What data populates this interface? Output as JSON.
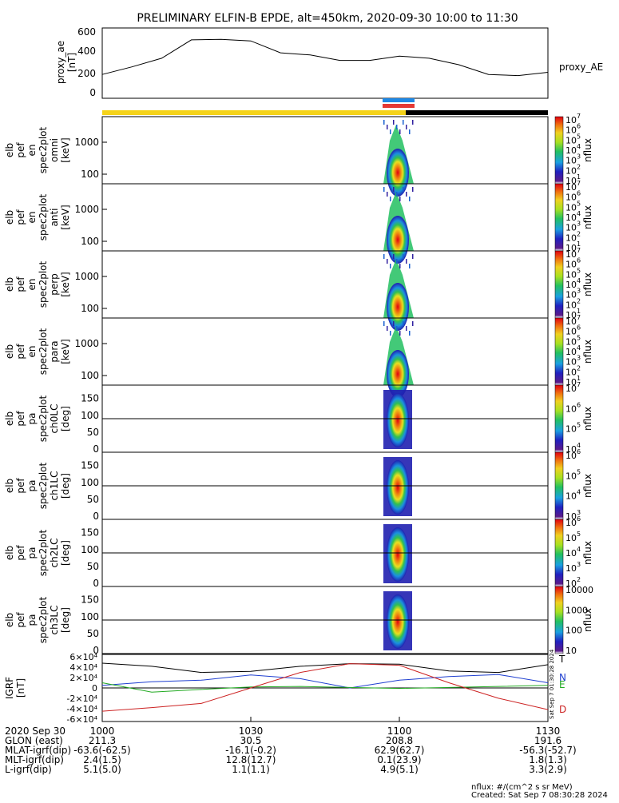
{
  "title": "PRELIMINARY ELFIN-B EPDE, alt=450km, 2020-09-30 10:00 to 11:30",
  "ae_panel": {
    "ylabel": [
      "proxy_ae",
      "[nT]"
    ],
    "legend": "proxy_AE",
    "ticks": [
      "0",
      "200",
      "400",
      "600"
    ]
  },
  "spec_panels": [
    {
      "ylabel": [
        "elb",
        "pef",
        "en",
        "spec2plot",
        "omni",
        "[keV]"
      ],
      "ticks": [
        "100",
        "1000"
      ],
      "cb_label": "nflux",
      "cb_ticks": [
        "10",
        "10",
        "10",
        "10",
        "10",
        "10",
        "10"
      ],
      "cb_exps": [
        "1",
        "2",
        "3",
        "4",
        "5",
        "6",
        "7"
      ]
    },
    {
      "ylabel": [
        "elb",
        "pef",
        "en",
        "spec2plot",
        "anti",
        "[keV]"
      ],
      "ticks": [
        "100",
        "1000"
      ],
      "cb_label": "nflux",
      "cb_ticks": [
        "10",
        "10",
        "10",
        "10",
        "10",
        "10",
        "10"
      ],
      "cb_exps": [
        "1",
        "2",
        "3",
        "4",
        "5",
        "6",
        "7"
      ]
    },
    {
      "ylabel": [
        "elb",
        "pef",
        "en",
        "spec2plot",
        "perp",
        "[keV]"
      ],
      "ticks": [
        "100",
        "1000"
      ],
      "cb_label": "nflux",
      "cb_ticks": [
        "10",
        "10",
        "10",
        "10",
        "10",
        "10",
        "10"
      ],
      "cb_exps": [
        "1",
        "2",
        "3",
        "4",
        "5",
        "6",
        "7"
      ]
    },
    {
      "ylabel": [
        "elb",
        "pef",
        "en",
        "spec2plot",
        "para",
        "[keV]"
      ],
      "ticks": [
        "100",
        "1000"
      ],
      "cb_label": "nflux",
      "cb_ticks": [
        "10",
        "10",
        "10",
        "10",
        "10",
        "10",
        "10"
      ],
      "cb_exps": [
        "1",
        "2",
        "3",
        "4",
        "5",
        "6",
        "7"
      ]
    }
  ],
  "pa_panels": [
    {
      "ylabel": [
        "elb",
        "pef",
        "pa",
        "spec2plot",
        "ch0LC",
        "[deg]"
      ],
      "ticks": [
        "0",
        "50",
        "100",
        "150"
      ],
      "cb_label": "nflux",
      "cb_ticks": [
        "10",
        "10",
        "10",
        "10"
      ],
      "cb_exps": [
        "4",
        "5",
        "6",
        "7"
      ]
    },
    {
      "ylabel": [
        "elb",
        "pef",
        "pa",
        "spec2plot",
        "ch1LC",
        "[deg]"
      ],
      "ticks": [
        "0",
        "50",
        "100",
        "150"
      ],
      "cb_label": "nflux",
      "cb_ticks": [
        "10",
        "10",
        "10",
        "10"
      ],
      "cb_exps": [
        "3",
        "4",
        "5",
        "6"
      ]
    },
    {
      "ylabel": [
        "elb",
        "pef",
        "pa",
        "spec2plot",
        "ch2LC",
        "[deg]"
      ],
      "ticks": [
        "0",
        "50",
        "100",
        "150"
      ],
      "cb_label": "nflux",
      "cb_ticks": [
        "10",
        "10",
        "10",
        "10",
        "10"
      ],
      "cb_exps": [
        "2",
        "3",
        "4",
        "5",
        "6"
      ]
    },
    {
      "ylabel": [
        "elb",
        "pef",
        "pa",
        "spec2plot",
        "ch3LC",
        "[deg]"
      ],
      "ticks": [
        "0",
        "50",
        "100",
        "150"
      ],
      "cb_label": "nflux",
      "cb_ticks": [
        "10",
        "100",
        "1000",
        "10000"
      ],
      "cb_exps": [
        "",
        "",
        "",
        ""
      ]
    }
  ],
  "igrf_panel": {
    "ylabel": [
      "IGRF",
      "[nT]"
    ],
    "ticks": [
      "-6×10⁴",
      "-4×10⁴",
      "-2×10⁴",
      "0",
      "2×10⁴",
      "4×10⁴",
      "6×10⁴"
    ],
    "legend": [
      "T",
      "N",
      "E",
      "D"
    ],
    "side_text": "Sat Sep  7 01:30:28 2024"
  },
  "footer": {
    "rows": [
      {
        "label": "2020 Sep 30",
        "values": [
          "1000",
          "1030",
          "1100",
          "1130"
        ]
      },
      {
        "label": "GLON (east)",
        "values": [
          "211.3",
          "30.5",
          "208.8",
          "191.6"
        ]
      },
      {
        "label": "MLAT-igrf(dip)",
        "values": [
          "-63.6(-62.5)",
          "-16.1(-0.2)",
          "62.9(62.7)",
          "-56.3(-52.7)"
        ]
      },
      {
        "label": "MLT-igrf(dip)",
        "values": [
          "2.4(1.5)",
          "12.8(12.7)",
          "0.1(23.9)",
          "1.8(1.3)"
        ]
      },
      {
        "label": "L-igrf(dip)",
        "values": [
          "5.1(5.0)",
          "1.1(1.1)",
          "4.9(5.1)",
          "3.3(2.9)"
        ]
      }
    ],
    "units_note": "nflux: #/(cm^2 s sr MeV)",
    "created": "Created: Sat Sep  7 08:30:28 2024"
  },
  "colors": {
    "sunlight_bar": "#f5d31a",
    "shadow_bar": "#000000",
    "science_blue": "#1e88e5",
    "science_red": "#e53935",
    "T": "#000000",
    "N": "#1f3fd0",
    "E": "#22aa22",
    "D": "#cc2222"
  },
  "chart_data": [
    {
      "type": "line",
      "name": "proxy_AE",
      "x": [
        "10:00",
        "10:06",
        "10:12",
        "10:18",
        "10:24",
        "10:30",
        "10:36",
        "10:42",
        "10:48",
        "10:54",
        "11:00",
        "11:06",
        "11:12",
        "11:18",
        "11:24",
        "11:30"
      ],
      "values": [
        220,
        290,
        370,
        540,
        545,
        530,
        420,
        400,
        350,
        350,
        390,
        370,
        310,
        220,
        210,
        240
      ],
      "ylim": [
        0,
        650
      ]
    },
    {
      "type": "heatmap",
      "name": "omni",
      "x_center": "11:00",
      "yscale": "log",
      "ylim": [
        60,
        6000
      ],
      "clim": [
        10,
        10000000
      ]
    },
    {
      "type": "heatmap",
      "name": "anti",
      "x_center": "11:00",
      "yscale": "log",
      "ylim": [
        60,
        6000
      ],
      "clim": [
        10,
        10000000
      ]
    },
    {
      "type": "heatmap",
      "name": "perp",
      "x_center": "11:00",
      "yscale": "log",
      "ylim": [
        60,
        6000
      ],
      "clim": [
        10,
        10000000
      ]
    },
    {
      "type": "heatmap",
      "name": "para",
      "x_center": "11:00",
      "yscale": "log",
      "ylim": [
        60,
        6000
      ],
      "clim": [
        10,
        10000000
      ]
    },
    {
      "type": "heatmap",
      "name": "ch0LC",
      "x_center": "11:00",
      "ylim": [
        0,
        180
      ],
      "clim": [
        10000,
        10000000
      ]
    },
    {
      "type": "heatmap",
      "name": "ch1LC",
      "x_center": "11:00",
      "ylim": [
        0,
        180
      ],
      "clim": [
        1000,
        1000000
      ]
    },
    {
      "type": "heatmap",
      "name": "ch2LC",
      "x_center": "11:00",
      "ylim": [
        0,
        180
      ],
      "clim": [
        100,
        1000000
      ]
    },
    {
      "type": "heatmap",
      "name": "ch3LC",
      "x_center": "11:00",
      "ylim": [
        0,
        180
      ],
      "clim": [
        10,
        10000
      ]
    },
    {
      "type": "line",
      "name": "IGRF",
      "x": [
        "10:00",
        "10:10",
        "10:20",
        "10:30",
        "10:40",
        "10:50",
        "11:00",
        "11:10",
        "11:20",
        "11:30"
      ],
      "series": [
        {
          "name": "T",
          "values": [
            48000,
            42000,
            30000,
            32000,
            42000,
            47000,
            46000,
            33000,
            30000,
            45000
          ]
        },
        {
          "name": "N",
          "values": [
            5000,
            12000,
            15000,
            25000,
            18000,
            0,
            15000,
            22000,
            26000,
            10000
          ]
        },
        {
          "name": "E",
          "values": [
            10000,
            -8000,
            -3000,
            2000,
            3000,
            1000,
            -1000,
            1000,
            3000,
            5000
          ]
        },
        {
          "name": "D",
          "values": [
            -45000,
            -38000,
            -30000,
            0,
            30000,
            47000,
            44000,
            10000,
            -20000,
            -42000
          ]
        }
      ],
      "ylim": [
        -65000,
        65000
      ]
    }
  ]
}
